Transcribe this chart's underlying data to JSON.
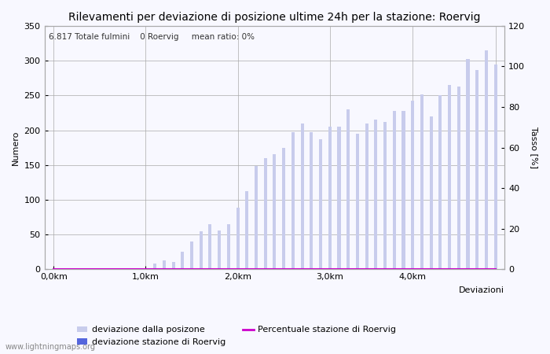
{
  "title": "Rilevamenti per deviazione di posizione ultime 24h per la stazione: Roervig",
  "subtitle": "6.817 Totale fulmini    0 Roervig     mean ratio: 0%",
  "xlabel": "Deviazioni",
  "ylabel_left": "Numero",
  "ylabel_right": "Tasso [%]",
  "ylim_left": [
    0,
    350
  ],
  "ylim_right": [
    0,
    120
  ],
  "yticks_left": [
    0,
    50,
    100,
    150,
    200,
    250,
    300,
    350
  ],
  "yticks_right": [
    0,
    20,
    40,
    60,
    80,
    100,
    120
  ],
  "bar_values": [
    0,
    0,
    0,
    0,
    0,
    0,
    0,
    0,
    0,
    0,
    0,
    8,
    13,
    10,
    25,
    40,
    55,
    65,
    56,
    65,
    88,
    112,
    148,
    160,
    165,
    175,
    197,
    210,
    197,
    187,
    205,
    205,
    230,
    195,
    210,
    215,
    212,
    228,
    228,
    243,
    252,
    220,
    250,
    265,
    263,
    302,
    287,
    315,
    294
  ],
  "station_values": [
    0,
    0,
    0,
    0,
    0,
    0,
    0,
    0,
    0,
    0,
    0,
    0,
    0,
    0,
    0,
    0,
    0,
    0,
    0,
    0,
    0,
    0,
    0,
    0,
    0,
    0,
    0,
    0,
    0,
    0,
    0,
    0,
    0,
    0,
    0,
    0,
    0,
    0,
    0,
    0,
    0,
    0,
    0,
    0,
    0,
    0,
    0,
    0,
    0
  ],
  "ratio_values": [
    0,
    0,
    0,
    0,
    0,
    0,
    0,
    0,
    0,
    0,
    0,
    0,
    0,
    0,
    0,
    0,
    0,
    0,
    0,
    0,
    0,
    0,
    0,
    0,
    0,
    0,
    0,
    0,
    0,
    0,
    0,
    0,
    0,
    0,
    0,
    0,
    0,
    0,
    0,
    0,
    0,
    0,
    0,
    0,
    0,
    0,
    0,
    0,
    0
  ],
  "xtick_positions": [
    0,
    10,
    20,
    30,
    39,
    48
  ],
  "xtick_labels": [
    "0,0km",
    "1,0km",
    "2,0km",
    "3,0km",
    "4,0km",
    ""
  ],
  "bar_color_light": "#c8ccec",
  "bar_color_dark": "#5566dd",
  "line_color": "#cc00cc",
  "grid_color": "#aaaaaa",
  "bg_color": "#f8f8ff",
  "title_fontsize": 10,
  "label_fontsize": 8,
  "tick_fontsize": 8,
  "watermark": "www.lightningmaps.org",
  "legend_label1": "deviazione dalla posizone",
  "legend_label2": "deviazione stazione di Roervig",
  "legend_label3": "Percentuale stazione di Roervig"
}
